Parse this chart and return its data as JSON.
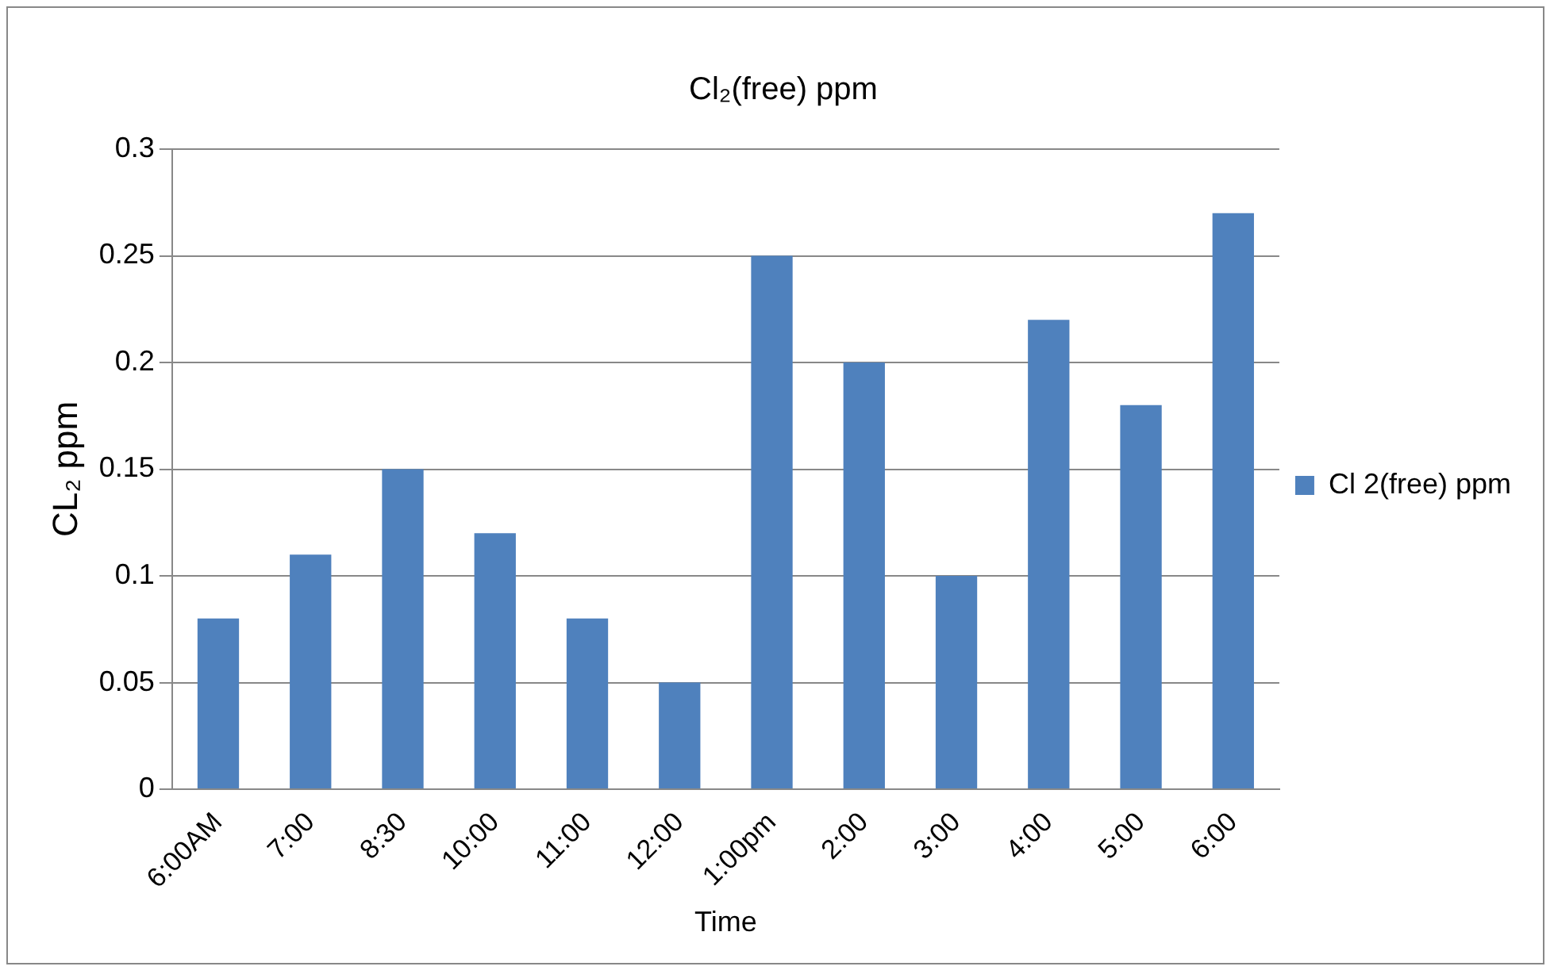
{
  "chart_data": {
    "type": "bar",
    "title": "Cl₂(free) ppm",
    "xlabel": "Time",
    "ylabel": "CL₂ ppm",
    "categories": [
      "6:00AM",
      "7:00",
      "8:30",
      "10:00",
      "11:00",
      "12:00",
      "1:00pm",
      "2:00",
      "3:00",
      "4:00",
      "5:00",
      "6:00"
    ],
    "series": [
      {
        "name": "Cl 2(free) ppm",
        "color": "#4f81bd",
        "values": [
          0.08,
          0.11,
          0.15,
          0.12,
          0.08,
          0.05,
          0.25,
          0.2,
          0.1,
          0.22,
          0.18,
          0.27
        ]
      }
    ],
    "ylim": [
      0,
      0.3
    ],
    "yticks": [
      0,
      0.05,
      0.1,
      0.15,
      0.2,
      0.25,
      0.3
    ],
    "grid": "y",
    "legend": "right"
  }
}
